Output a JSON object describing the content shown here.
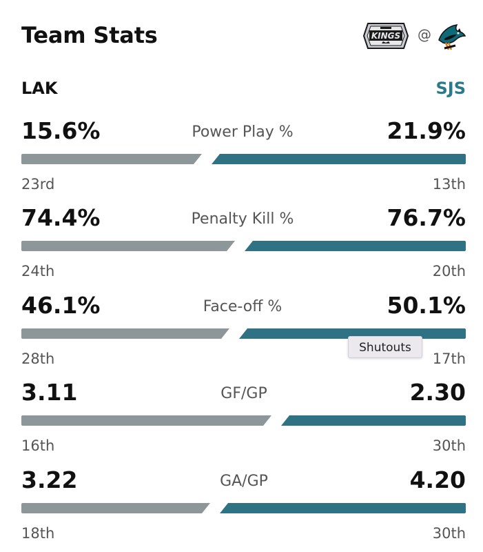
{
  "header": {
    "title": "Team Stats",
    "separator": "@",
    "away_logo_icon": "la-kings-logo",
    "home_logo_icon": "sj-sharks-logo"
  },
  "teams": {
    "left": "LAK",
    "right": "SJS"
  },
  "colors": {
    "left_bar": "#8d9699",
    "right_bar": "#2f7284",
    "right_team_text": "#2b7a8a",
    "tooltip_bg": "#ece9ee"
  },
  "stats": [
    {
      "label": "Power Play %",
      "left_value": "15.6%",
      "right_value": "21.9%",
      "left_rank": "23rd",
      "right_rank": "13th",
      "left_share": 0.416,
      "right_share": 0.584
    },
    {
      "label": "Penalty Kill %",
      "left_value": "74.4%",
      "right_value": "76.7%",
      "left_rank": "24th",
      "right_rank": "20th",
      "left_share": 0.492,
      "right_share": 0.508
    },
    {
      "label": "Face-off %",
      "left_value": "46.1%",
      "right_value": "50.1%",
      "left_rank": "28th",
      "right_rank": "17th",
      "left_share": 0.479,
      "right_share": 0.521
    },
    {
      "label": "GF/GP",
      "left_value": "3.11",
      "right_value": "2.30",
      "left_rank": "16th",
      "right_rank": "30th",
      "left_share": 0.575,
      "right_share": 0.425
    },
    {
      "label": "GA/GP",
      "left_value": "3.22",
      "right_value": "4.20",
      "left_rank": "18th",
      "right_rank": "30th",
      "left_share": 0.434,
      "right_share": 0.566
    }
  ],
  "tooltip": {
    "text": "Shutouts"
  }
}
